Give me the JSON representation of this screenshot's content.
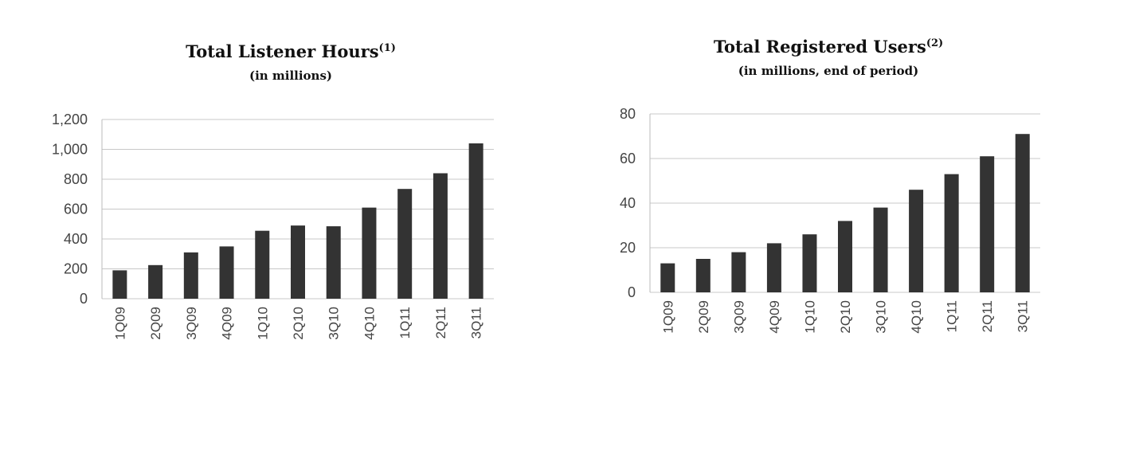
{
  "chart_data": [
    {
      "type": "bar",
      "title": "Total Listener Hours",
      "title_superscript": "(1)",
      "subtitle": "(in millions)",
      "categories": [
        "1Q09",
        "2Q09",
        "3Q09",
        "4Q09",
        "1Q10",
        "2Q10",
        "3Q10",
        "4Q10",
        "1Q11",
        "2Q11",
        "3Q11"
      ],
      "values": [
        190,
        225,
        310,
        350,
        455,
        490,
        485,
        610,
        735,
        840,
        1040
      ],
      "ylim": [
        0,
        1200
      ],
      "yticks": [
        0,
        200,
        400,
        600,
        800,
        1000,
        1200
      ],
      "ytick_labels": [
        "0",
        "200",
        "400",
        "600",
        "800",
        "1,000",
        "1,200"
      ],
      "xlabel": "",
      "ylabel": "",
      "grid": true,
      "bar_color": "#333333"
    },
    {
      "type": "bar",
      "title": "Total Registered Users",
      "title_superscript": "(2)",
      "subtitle": "(in millions, end of period)",
      "categories": [
        "1Q09",
        "2Q09",
        "3Q09",
        "4Q09",
        "1Q10",
        "2Q10",
        "3Q10",
        "4Q10",
        "1Q11",
        "2Q11",
        "3Q11"
      ],
      "values": [
        13,
        15,
        18,
        22,
        26,
        32,
        38,
        46,
        53,
        61,
        71
      ],
      "ylim": [
        0,
        80
      ],
      "yticks": [
        0,
        20,
        40,
        60,
        80
      ],
      "ytick_labels": [
        "0",
        "20",
        "40",
        "60",
        "80"
      ],
      "xlabel": "",
      "ylabel": "",
      "grid": true,
      "bar_color": "#333333"
    }
  ]
}
